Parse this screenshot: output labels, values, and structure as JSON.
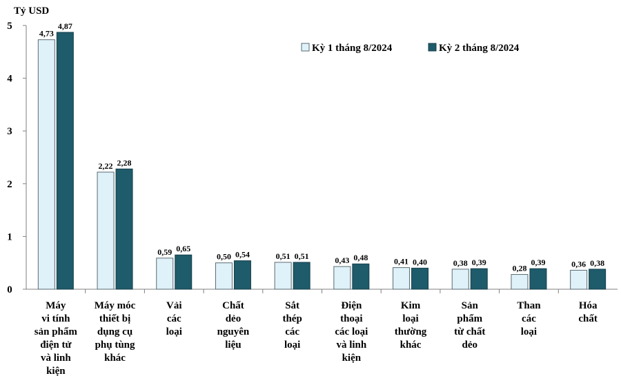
{
  "chart_data": {
    "type": "bar",
    "unit_label": "Tỷ USD",
    "ylim": [
      0,
      5
    ],
    "yticks": [
      "0",
      "1",
      "2",
      "3",
      "4",
      "5"
    ],
    "grid": false,
    "legend_position": "top-right",
    "categories": [
      [
        "Máy",
        "vi tính",
        "sản phẩm",
        "điện tử",
        "và linh",
        "kiện"
      ],
      [
        "Máy móc",
        "thiết bị",
        "dụng cụ",
        "phụ tùng",
        "khác"
      ],
      [
        "Vải",
        "các",
        "loại"
      ],
      [
        "Chất",
        "dẻo",
        "nguyên",
        "liệu"
      ],
      [
        "Sắt",
        "thép",
        "các",
        "loại"
      ],
      [
        "Điện",
        "thoại",
        "các loại",
        "và linh",
        "kiện"
      ],
      [
        "Kim",
        "loại",
        "thường",
        "khác"
      ],
      [
        "Sản",
        "phẩm",
        "từ chất",
        "dẻo"
      ],
      [
        "Than",
        "các",
        "loại"
      ],
      [
        "Hóa",
        "chất"
      ]
    ],
    "series": [
      {
        "name": "Kỳ 1 tháng 8/2024",
        "color": "#dff1f9",
        "values": [
          4.73,
          2.22,
          0.59,
          0.5,
          0.51,
          0.43,
          0.41,
          0.38,
          0.28,
          0.36
        ],
        "labels": [
          "4,73",
          "2,22",
          "0,59",
          "0,50",
          "0,51",
          "0,43",
          "0,41",
          "0,38",
          "0,28",
          "0,36"
        ]
      },
      {
        "name": "Kỳ 2 tháng 8/2024",
        "color": "#1e5b6b",
        "values": [
          4.87,
          2.28,
          0.65,
          0.54,
          0.51,
          0.48,
          0.4,
          0.39,
          0.39,
          0.38
        ],
        "labels": [
          "4,87",
          "2,28",
          "0,65",
          "0,54",
          "0,51",
          "0,48",
          "0,40",
          "0,39",
          "0,39",
          "0,38"
        ]
      }
    ]
  }
}
